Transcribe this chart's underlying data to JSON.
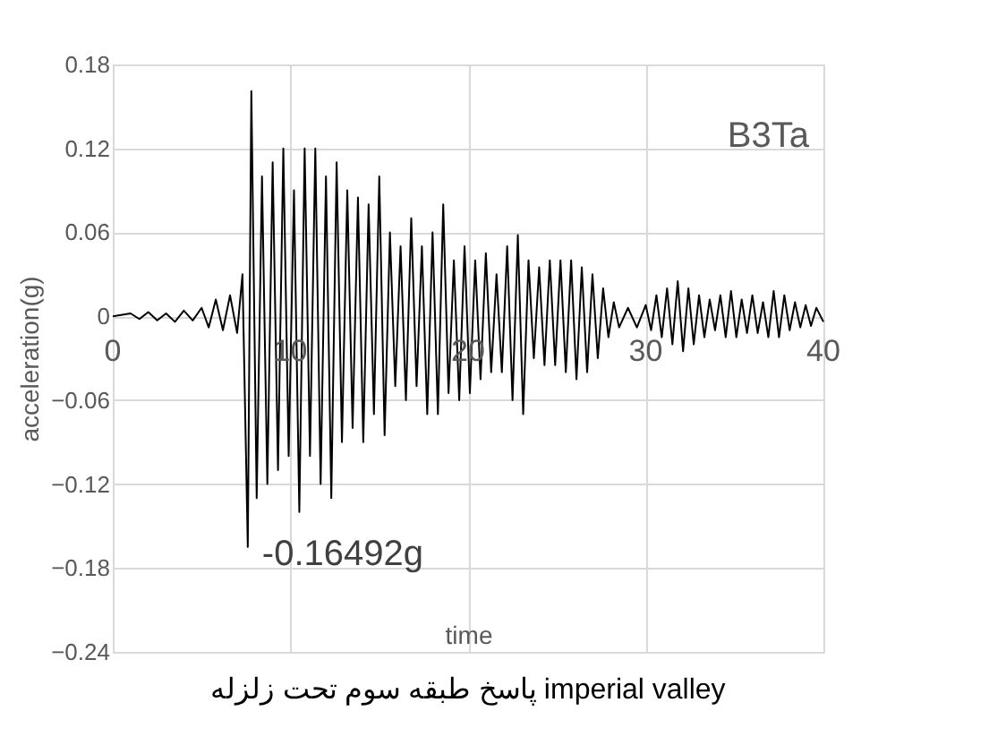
{
  "chart_data": {
    "type": "line",
    "title": "پاسخ طبقه سوم تحت زلزله imperial valley",
    "xlabel": "time",
    "ylabel": "acceleration(g)",
    "color": "#000000",
    "x": [
      0,
      1,
      1.5,
      2,
      2.5,
      3,
      3.5,
      4,
      4.5,
      5,
      5.4,
      5.8,
      6.2,
      6.6,
      7,
      7.3,
      7.6,
      7.8,
      8.1,
      8.4,
      8.7,
      9.0,
      9.3,
      9.6,
      9.9,
      10.2,
      10.5,
      10.8,
      11.1,
      11.4,
      11.7,
      12.0,
      12.3,
      12.6,
      12.9,
      13.2,
      13.5,
      13.8,
      14.1,
      14.4,
      14.7,
      15,
      15.3,
      15.6,
      15.9,
      16.2,
      16.5,
      16.8,
      17.1,
      17.4,
      17.7,
      18,
      18.3,
      18.6,
      18.9,
      19.2,
      19.5,
      19.8,
      20.1,
      20.4,
      20.7,
      21,
      21.3,
      21.6,
      21.9,
      22.2,
      22.5,
      22.8,
      23.1,
      23.4,
      23.7,
      24,
      24.3,
      24.6,
      24.9,
      25.2,
      25.5,
      25.8,
      26.1,
      26.4,
      26.7,
      27,
      27.3,
      27.6,
      27.9,
      28.2,
      28.5,
      29,
      29.5,
      30,
      30.3,
      30.6,
      30.9,
      31.2,
      31.5,
      31.8,
      32.1,
      32.4,
      32.7,
      33,
      33.3,
      33.6,
      33.9,
      34.2,
      34.5,
      34.8,
      35.1,
      35.4,
      35.7,
      36,
      36.3,
      36.6,
      36.9,
      37.2,
      37.5,
      37.8,
      38.1,
      38.4,
      38.7,
      39,
      39.3,
      39.6,
      40
    ],
    "values": [
      0,
      0.002,
      -0.002,
      0.003,
      -0.003,
      0.002,
      -0.004,
      0.004,
      -0.003,
      0.006,
      -0.008,
      0.012,
      -0.01,
      0.015,
      -0.012,
      0.03,
      -0.165,
      0.161,
      -0.13,
      0.1,
      -0.12,
      0.11,
      -0.11,
      0.12,
      -0.1,
      0.09,
      -0.14,
      0.12,
      -0.1,
      0.12,
      -0.12,
      0.1,
      -0.13,
      0.11,
      -0.09,
      0.09,
      -0.08,
      0.085,
      -0.09,
      0.08,
      -0.07,
      0.1,
      -0.085,
      0.06,
      -0.05,
      0.05,
      -0.06,
      0.07,
      -0.05,
      0.05,
      -0.07,
      0.06,
      -0.07,
      0.08,
      -0.055,
      0.04,
      -0.06,
      0.05,
      -0.055,
      0.04,
      -0.045,
      0.045,
      -0.04,
      0.03,
      -0.04,
      0.05,
      -0.06,
      0.058,
      -0.07,
      0.04,
      -0.03,
      0.035,
      -0.035,
      0.04,
      -0.035,
      0.04,
      -0.04,
      0.04,
      -0.045,
      0.035,
      -0.04,
      0.03,
      -0.03,
      0.02,
      -0.015,
      0.01,
      -0.008,
      0.006,
      -0.008,
      0.008,
      -0.01,
      0.015,
      -0.015,
      0.02,
      -0.02,
      0.025,
      -0.025,
      0.02,
      -0.02,
      0.015,
      -0.015,
      0.012,
      -0.01,
      0.015,
      -0.015,
      0.018,
      -0.015,
      0.012,
      -0.012,
      0.015,
      -0.012,
      0.01,
      -0.015,
      0.018,
      -0.015,
      0.015,
      -0.01,
      0.01,
      -0.008,
      0.008,
      -0.007,
      0.006,
      -0.004
    ],
    "xlim": [
      0,
      40
    ],
    "xticks": [
      0,
      10,
      20,
      30,
      40
    ],
    "ylim": [
      -0.24,
      0.18
    ],
    "yticks": [
      -0.24,
      -0.18,
      -0.12,
      -0.06,
      0,
      0.06,
      0.12,
      0.18
    ],
    "grid": true,
    "marker": "none",
    "line_style": "solid",
    "annotations": [
      "B3Ta",
      {
        "text": "-0.16492g",
        "x": 7.6,
        "y": -0.165
      }
    ]
  }
}
